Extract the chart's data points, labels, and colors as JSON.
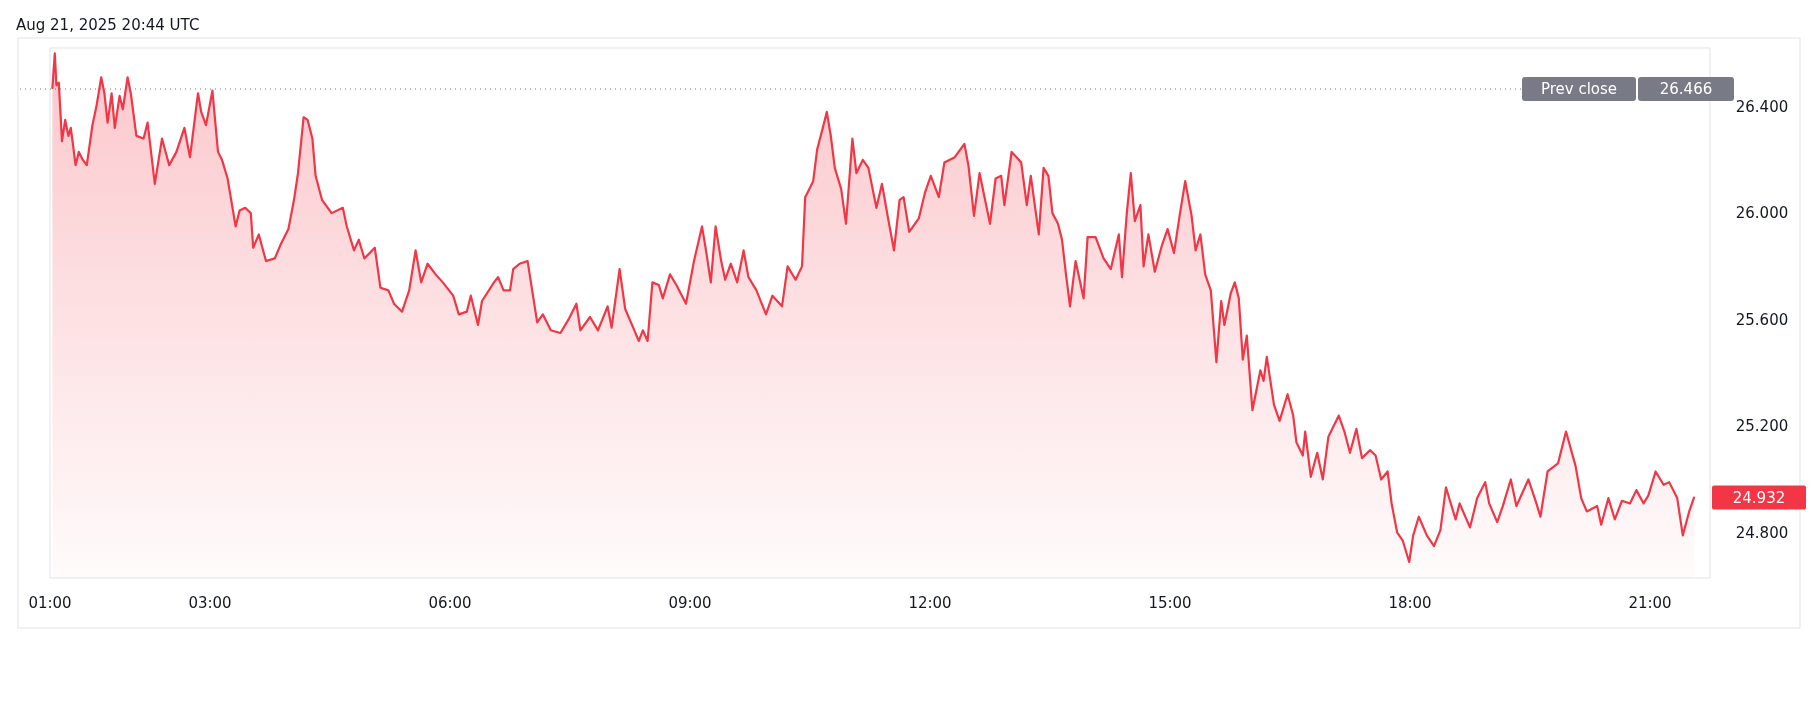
{
  "chart_data": {
    "type": "area",
    "annotations": [
      "Aug 21, 2025 20:44 UTC",
      "26.466",
      {
        "text": "24.932",
        "x": 21.55,
        "y": 24.932
      }
    ],
    "xlim": [
      1,
      21.75
    ],
    "xticks": [
      {
        "value": 1,
        "label": "01:00"
      },
      {
        "value": 3,
        "label": "03:00"
      },
      {
        "value": 6,
        "label": "06:00"
      },
      {
        "value": 9,
        "label": "09:00"
      },
      {
        "value": 12,
        "label": "12:00"
      },
      {
        "value": 15,
        "label": "15:00"
      },
      {
        "value": 18,
        "label": "18:00"
      },
      {
        "value": 21,
        "label": "21:00"
      }
    ],
    "ylim": [
      24.63,
      26.62
    ],
    "yticks": [
      {
        "value": 24.8,
        "label": "24.800"
      },
      {
        "value": 25.2,
        "label": "25.200"
      },
      {
        "value": 25.6,
        "label": "25.600"
      },
      {
        "value": 26,
        "label": "26.000"
      },
      {
        "value": 26.4,
        "label": "26.400"
      }
    ],
    "grid": false,
    "ref_lines": [
      {
        "axis": "y",
        "value": 26.466,
        "label": "Prev close",
        "color": "#787b86",
        "line_style": "dotted"
      }
    ],
    "series": [
      {
        "color": "#f23645",
        "x": [
          1.03,
          1.06,
          1.08,
          1.11,
          1.15,
          1.19,
          1.23,
          1.26,
          1.32,
          1.36,
          1.41,
          1.46,
          1.53,
          1.58,
          1.64,
          1.68,
          1.72,
          1.77,
          1.81,
          1.87,
          1.91,
          1.97,
          2.01,
          2.08,
          2.17,
          2.22,
          2.31,
          2.4,
          2.49,
          2.58,
          2.68,
          2.75,
          2.85,
          2.89,
          2.95,
          3.03,
          3.1,
          3.15,
          3.22,
          3.32,
          3.37,
          3.44,
          3.51,
          3.54,
          3.61,
          3.7,
          3.81,
          3.88,
          3.98,
          4.05,
          4.1,
          4.17,
          4.22,
          4.28,
          4.32,
          4.4,
          4.52,
          4.66,
          4.71,
          4.8,
          4.86,
          4.93,
          5.06,
          5.13,
          5.23,
          5.3,
          5.4,
          5.49,
          5.57,
          5.64,
          5.72,
          5.82,
          5.91,
          6.04,
          6.11,
          6.21,
          6.26,
          6.35,
          6.4,
          6.55,
          6.6,
          6.67,
          6.75,
          6.79,
          6.87,
          6.97,
          7.09,
          7.16,
          7.26,
          7.38,
          7.48,
          7.58,
          7.63,
          7.75,
          7.85,
          7.97,
          8.02,
          8.12,
          8.19,
          8.29,
          8.36,
          8.41,
          8.47,
          8.53,
          8.61,
          8.66,
          8.75,
          8.83,
          8.95,
          9.05,
          9.15,
          9.2,
          9.26,
          9.32,
          9.39,
          9.44,
          9.51,
          9.59,
          9.67,
          9.73,
          9.83,
          9.95,
          10.03,
          10.15,
          10.22,
          10.32,
          10.4,
          10.44,
          10.54,
          10.59,
          10.66,
          10.71,
          10.76,
          10.81,
          10.89,
          10.95,
          11.03,
          11.08,
          11.16,
          11.23,
          11.33,
          11.4,
          11.47,
          11.55,
          11.62,
          11.67,
          11.74,
          11.86,
          11.94,
          12.01,
          12.11,
          12.18,
          12.31,
          12.43,
          12.48,
          12.55,
          12.62,
          12.75,
          12.82,
          12.89,
          12.93,
          13.02,
          13.14,
          13.21,
          13.26,
          13.36,
          13.42,
          13.48,
          13.53,
          13.6,
          13.65,
          13.7,
          13.75,
          13.82,
          13.92,
          13.97,
          14.07,
          14.17,
          14.26,
          14.36,
          14.4,
          14.46,
          14.51,
          14.56,
          14.63,
          14.67,
          14.73,
          14.81,
          14.9,
          14.97,
          15.05,
          15.12,
          15.19,
          15.27,
          15.32,
          15.38,
          15.44,
          15.51,
          15.58,
          15.64,
          15.68,
          15.76,
          15.81,
          15.86,
          15.91,
          15.96,
          16.03,
          16.13,
          16.17,
          16.21,
          16.3,
          16.37,
          16.47,
          16.54,
          16.58,
          16.66,
          16.69,
          16.76,
          16.84,
          16.91,
          16.98,
          17.11,
          17.18,
          17.25,
          17.33,
          17.4,
          17.5,
          17.57,
          17.64,
          17.72,
          17.77,
          17.84,
          17.91,
          17.99,
          18.04,
          18.11,
          18.21,
          18.3,
          18.38,
          18.45,
          18.57,
          18.62,
          18.75,
          18.84,
          18.94,
          18.99,
          19.09,
          19.16,
          19.26,
          19.33,
          19.48,
          19.58,
          19.63,
          19.72,
          19.85,
          19.95,
          20.07,
          20.14,
          20.21,
          20.34,
          20.39,
          20.48,
          20.56,
          20.65,
          20.75,
          20.83,
          20.92,
          20.98,
          21.07,
          21.17,
          21.24,
          21.34,
          21.41,
          21.49,
          21.55
        ],
        "values": [
          26.47,
          26.6,
          26.48,
          26.49,
          26.27,
          26.35,
          26.29,
          26.32,
          26.18,
          26.23,
          26.2,
          26.18,
          26.33,
          26.4,
          26.51,
          26.45,
          26.34,
          26.45,
          26.32,
          26.44,
          26.39,
          26.51,
          26.45,
          26.29,
          26.28,
          26.34,
          26.11,
          26.28,
          26.18,
          26.23,
          26.32,
          26.21,
          26.45,
          26.38,
          26.33,
          26.46,
          26.23,
          26.2,
          26.13,
          25.95,
          26.01,
          26.02,
          26.0,
          25.87,
          25.92,
          25.82,
          25.83,
          25.88,
          25.94,
          26.05,
          26.15,
          26.36,
          26.35,
          26.28,
          26.14,
          26.05,
          26.0,
          26.02,
          25.95,
          25.86,
          25.9,
          25.83,
          25.87,
          25.72,
          25.71,
          25.66,
          25.63,
          25.71,
          25.86,
          25.74,
          25.81,
          25.77,
          25.74,
          25.69,
          25.62,
          25.63,
          25.69,
          25.58,
          25.67,
          25.74,
          25.76,
          25.71,
          25.71,
          25.79,
          25.81,
          25.82,
          25.59,
          25.62,
          25.56,
          25.55,
          25.6,
          25.66,
          25.56,
          25.61,
          25.56,
          25.65,
          25.57,
          25.79,
          25.64,
          25.57,
          25.52,
          25.56,
          25.52,
          25.74,
          25.73,
          25.68,
          25.77,
          25.73,
          25.66,
          25.82,
          25.95,
          25.86,
          25.74,
          25.95,
          25.82,
          25.75,
          25.81,
          25.74,
          25.86,
          25.76,
          25.71,
          25.62,
          25.69,
          25.65,
          25.8,
          25.75,
          25.8,
          26.06,
          26.12,
          26.24,
          26.32,
          26.38,
          26.29,
          26.17,
          26.09,
          25.96,
          26.28,
          26.15,
          26.2,
          26.17,
          26.02,
          26.11,
          25.99,
          25.86,
          26.05,
          26.06,
          25.93,
          25.98,
          26.08,
          26.14,
          26.06,
          26.19,
          26.21,
          26.26,
          26.18,
          25.99,
          26.15,
          25.96,
          26.13,
          26.14,
          26.03,
          26.23,
          26.19,
          26.03,
          26.14,
          25.92,
          26.17,
          26.14,
          26.0,
          25.96,
          25.9,
          25.77,
          25.65,
          25.82,
          25.68,
          25.91,
          25.91,
          25.83,
          25.79,
          25.92,
          25.76,
          26.0,
          26.15,
          25.97,
          26.03,
          25.8,
          25.92,
          25.78,
          25.88,
          25.94,
          25.85,
          25.99,
          26.12,
          25.99,
          25.86,
          25.92,
          25.77,
          25.71,
          25.44,
          25.67,
          25.58,
          25.7,
          25.74,
          25.68,
          25.45,
          25.54,
          25.26,
          25.41,
          25.37,
          25.46,
          25.28,
          25.22,
          25.32,
          25.24,
          25.14,
          25.09,
          25.18,
          25.01,
          25.1,
          25.0,
          25.16,
          25.24,
          25.18,
          25.1,
          25.19,
          25.08,
          25.11,
          25.09,
          25.0,
          25.03,
          24.91,
          24.8,
          24.77,
          24.69,
          24.79,
          24.86,
          24.79,
          24.75,
          24.81,
          24.97,
          24.85,
          24.91,
          24.82,
          24.93,
          24.99,
          24.91,
          24.84,
          24.9,
          25.0,
          24.9,
          25.0,
          24.91,
          24.86,
          25.03,
          25.06,
          25.18,
          25.05,
          24.93,
          24.88,
          24.9,
          24.83,
          24.93,
          24.85,
          24.92,
          24.91,
          24.96,
          24.91,
          24.94,
          25.03,
          24.98,
          24.99,
          24.93,
          24.79,
          24.88,
          24.932
        ]
      }
    ]
  }
}
